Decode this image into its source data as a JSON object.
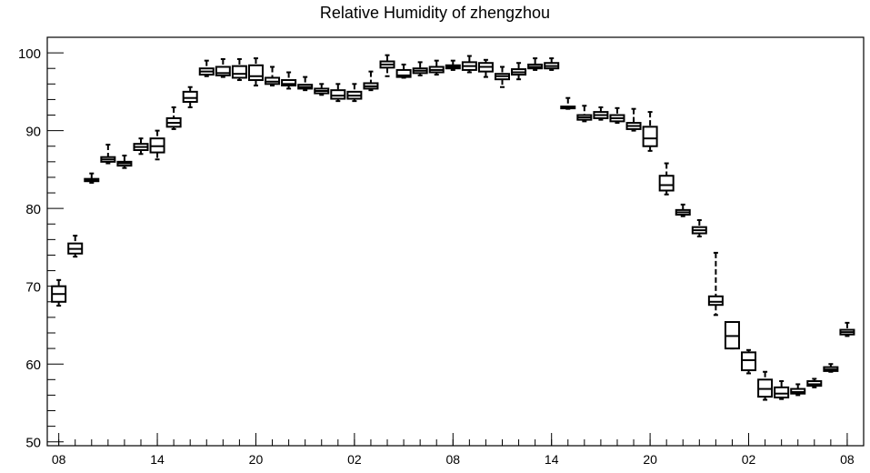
{
  "chart_data": {
    "type": "box",
    "title": "Relative Humidity of zhengzhou",
    "xlabel": "",
    "ylabel": "",
    "ylim": [
      49.5,
      102
    ],
    "yticks": [
      50,
      60,
      70,
      80,
      90,
      100
    ],
    "xticks": [
      {
        "hour": 0,
        "label": "08"
      },
      {
        "hour": 6,
        "label": "14"
      },
      {
        "hour": 12,
        "label": "20"
      },
      {
        "hour": 18,
        "label": "02"
      },
      {
        "hour": 24,
        "label": "08"
      },
      {
        "hour": 30,
        "label": "14"
      },
      {
        "hour": 36,
        "label": "20"
      },
      {
        "hour": 42,
        "label": "02"
      },
      {
        "hour": 48,
        "label": "08"
      }
    ],
    "xlim": [
      -0.7,
      49
    ],
    "grid": false,
    "boxes": [
      {
        "x": 0,
        "min": 67.5,
        "q1": 68.0,
        "median": 69.0,
        "q3": 70.0,
        "max": 70.8
      },
      {
        "x": 1,
        "min": 73.8,
        "q1": 74.2,
        "median": 74.8,
        "q3": 75.5,
        "max": 76.5
      },
      {
        "x": 2,
        "min": 83.3,
        "q1": 83.5,
        "median": 83.6,
        "q3": 83.8,
        "max": 84.5
      },
      {
        "x": 3,
        "min": 85.8,
        "q1": 86.0,
        "median": 86.3,
        "q3": 86.6,
        "max": 88.2
      },
      {
        "x": 4,
        "min": 85.2,
        "q1": 85.5,
        "median": 85.8,
        "q3": 86.0,
        "max": 86.8
      },
      {
        "x": 5,
        "min": 87.0,
        "q1": 87.5,
        "median": 87.9,
        "q3": 88.3,
        "max": 89.0
      },
      {
        "x": 6,
        "min": 86.3,
        "q1": 87.2,
        "median": 88.0,
        "q3": 89.0,
        "max": 90.0
      },
      {
        "x": 7,
        "min": 90.2,
        "q1": 90.5,
        "median": 91.0,
        "q3": 91.6,
        "max": 93.0
      },
      {
        "x": 8,
        "min": 93.0,
        "q1": 93.7,
        "median": 94.2,
        "q3": 95.0,
        "max": 95.6
      },
      {
        "x": 9,
        "min": 97.0,
        "q1": 97.2,
        "median": 97.6,
        "q3": 98.0,
        "max": 99.0
      },
      {
        "x": 10,
        "min": 96.9,
        "q1": 97.1,
        "median": 97.4,
        "q3": 98.2,
        "max": 99.2
      },
      {
        "x": 11,
        "min": 96.5,
        "q1": 96.8,
        "median": 97.3,
        "q3": 98.3,
        "max": 99.2
      },
      {
        "x": 12,
        "min": 95.8,
        "q1": 96.5,
        "median": 97.0,
        "q3": 98.4,
        "max": 99.3
      },
      {
        "x": 13,
        "min": 95.8,
        "q1": 96.0,
        "median": 96.3,
        "q3": 96.8,
        "max": 98.2
      },
      {
        "x": 14,
        "min": 95.4,
        "q1": 95.8,
        "median": 96.0,
        "q3": 96.5,
        "max": 97.5
      },
      {
        "x": 15,
        "min": 95.2,
        "q1": 95.4,
        "median": 95.6,
        "q3": 95.9,
        "max": 96.9
      },
      {
        "x": 16,
        "min": 94.6,
        "q1": 94.8,
        "median": 95.1,
        "q3": 95.4,
        "max": 96.0
      },
      {
        "x": 17,
        "min": 93.8,
        "q1": 94.1,
        "median": 94.5,
        "q3": 95.2,
        "max": 96.0
      },
      {
        "x": 18,
        "min": 93.8,
        "q1": 94.1,
        "median": 94.5,
        "q3": 95.0,
        "max": 96.0
      },
      {
        "x": 19,
        "min": 95.2,
        "q1": 95.4,
        "median": 95.7,
        "q3": 96.1,
        "max": 97.6
      },
      {
        "x": 20,
        "min": 97.0,
        "q1": 98.1,
        "median": 98.5,
        "q3": 98.9,
        "max": 99.7
      },
      {
        "x": 21,
        "min": 96.8,
        "q1": 96.9,
        "median": 97.1,
        "q3": 97.8,
        "max": 98.5
      },
      {
        "x": 22,
        "min": 97.1,
        "q1": 97.4,
        "median": 97.7,
        "q3": 98.0,
        "max": 98.8
      },
      {
        "x": 23,
        "min": 97.2,
        "q1": 97.5,
        "median": 97.8,
        "q3": 98.2,
        "max": 99.0
      },
      {
        "x": 24,
        "min": 97.8,
        "q1": 98.0,
        "median": 98.2,
        "q3": 98.4,
        "max": 99.0
      },
      {
        "x": 25,
        "min": 97.5,
        "q1": 97.8,
        "median": 98.3,
        "q3": 98.8,
        "max": 99.6
      },
      {
        "x": 26,
        "min": 96.9,
        "q1": 97.6,
        "median": 98.2,
        "q3": 98.7,
        "max": 99.1
      },
      {
        "x": 27,
        "min": 95.6,
        "q1": 96.6,
        "median": 97.0,
        "q3": 97.3,
        "max": 98.2
      },
      {
        "x": 28,
        "min": 96.6,
        "q1": 97.2,
        "median": 97.5,
        "q3": 97.9,
        "max": 98.7
      },
      {
        "x": 29,
        "min": 97.8,
        "q1": 98.0,
        "median": 98.2,
        "q3": 98.5,
        "max": 99.3
      },
      {
        "x": 30,
        "min": 97.8,
        "q1": 98.0,
        "median": 98.3,
        "q3": 98.7,
        "max": 99.3
      },
      {
        "x": 31,
        "min": 92.8,
        "q1": 92.9,
        "median": 93.0,
        "q3": 93.1,
        "max": 94.2
      },
      {
        "x": 32,
        "min": 91.2,
        "q1": 91.4,
        "median": 91.7,
        "q3": 92.0,
        "max": 93.2
      },
      {
        "x": 33,
        "min": 91.4,
        "q1": 91.6,
        "median": 92.0,
        "q3": 92.4,
        "max": 93.0
      },
      {
        "x": 34,
        "min": 91.0,
        "q1": 91.2,
        "median": 91.6,
        "q3": 92.0,
        "max": 92.9
      },
      {
        "x": 35,
        "min": 90.0,
        "q1": 90.2,
        "median": 90.6,
        "q3": 91.0,
        "max": 92.8
      },
      {
        "x": 36,
        "min": 87.4,
        "q1": 88.0,
        "median": 89.0,
        "q3": 90.5,
        "max": 92.4
      },
      {
        "x": 37,
        "min": 81.8,
        "q1": 82.3,
        "median": 83.0,
        "q3": 84.2,
        "max": 85.8
      },
      {
        "x": 38,
        "min": 79.0,
        "q1": 79.2,
        "median": 79.5,
        "q3": 79.8,
        "max": 80.5
      },
      {
        "x": 39,
        "min": 76.4,
        "q1": 76.8,
        "median": 77.2,
        "q3": 77.6,
        "max": 78.5
      },
      {
        "x": 40,
        "min": 66.3,
        "q1": 67.6,
        "median": 68.0,
        "q3": 68.7,
        "max": 74.3
      },
      {
        "x": 41,
        "min": 62.0,
        "q1": 62.0,
        "median": 63.6,
        "q3": 65.4,
        "max": 65.4
      },
      {
        "x": 42,
        "min": 58.8,
        "q1": 59.2,
        "median": 60.5,
        "q3": 61.5,
        "max": 61.8
      },
      {
        "x": 43,
        "min": 55.4,
        "q1": 55.8,
        "median": 56.8,
        "q3": 58.0,
        "max": 59.0
      },
      {
        "x": 44,
        "min": 55.5,
        "q1": 55.7,
        "median": 56.2,
        "q3": 57.0,
        "max": 57.8
      },
      {
        "x": 45,
        "min": 56.0,
        "q1": 56.2,
        "median": 56.4,
        "q3": 56.8,
        "max": 57.4
      },
      {
        "x": 46,
        "min": 57.0,
        "q1": 57.2,
        "median": 57.4,
        "q3": 57.8,
        "max": 58.1
      },
      {
        "x": 47,
        "min": 59.0,
        "q1": 59.1,
        "median": 59.3,
        "q3": 59.6,
        "max": 60.0
      },
      {
        "x": 48,
        "min": 63.6,
        "q1": 63.8,
        "median": 64.1,
        "q3": 64.4,
        "max": 65.3
      }
    ]
  }
}
